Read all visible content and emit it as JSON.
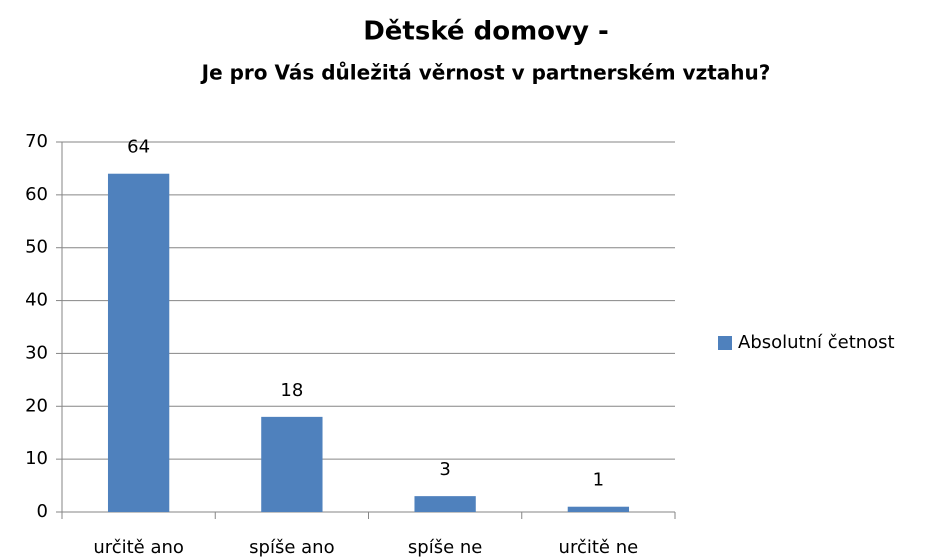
{
  "chart_data": {
    "type": "bar",
    "title": "Dětské domovy -",
    "subtitle": "Je pro Vás důležitá věrnost v partnerském vztahu?",
    "categories": [
      "určitě ano",
      "spíše ano",
      "spíše ne",
      "určitě ne"
    ],
    "series": [
      {
        "name": "Absolutní četnost",
        "color": "#4f81bd",
        "values": [
          64,
          18,
          3,
          1
        ]
      }
    ],
    "ylim": [
      0,
      70
    ],
    "yticks": [
      0,
      10,
      20,
      30,
      40,
      50,
      60,
      70
    ],
    "grid": true,
    "legend": "right"
  }
}
